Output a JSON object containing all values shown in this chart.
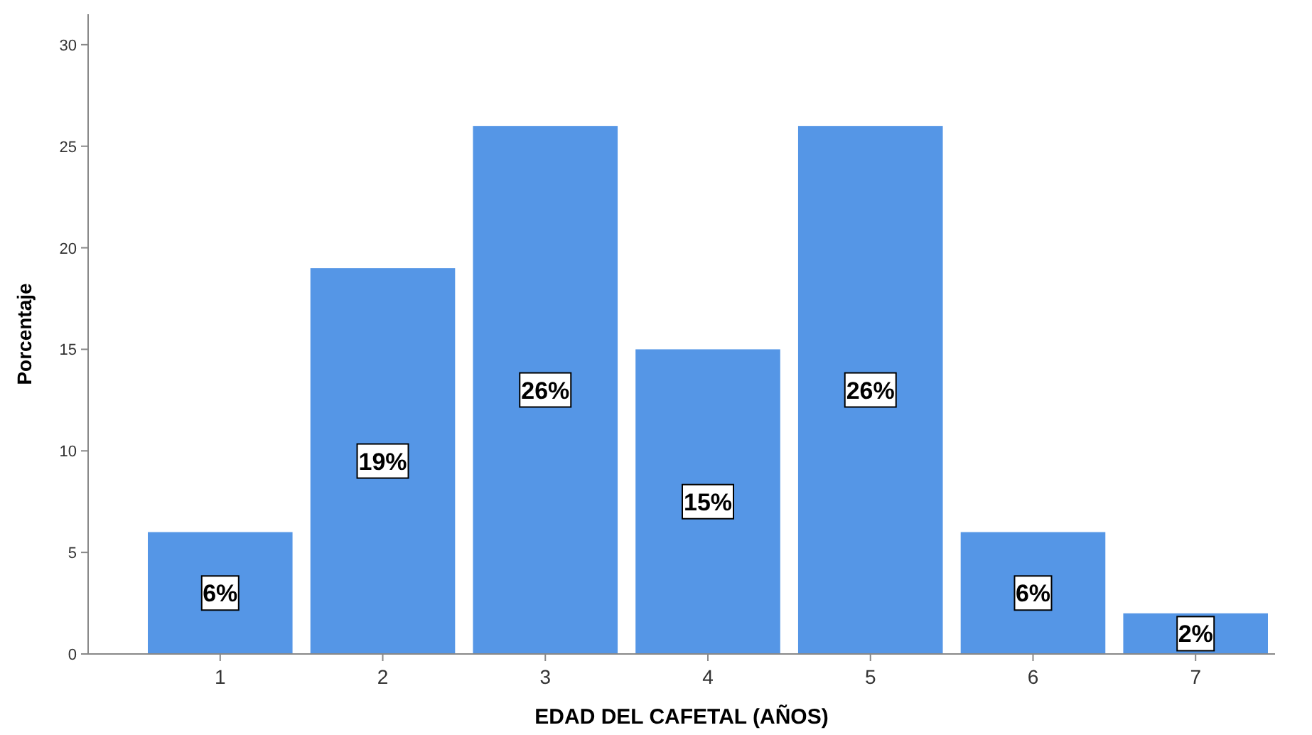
{
  "chart_data": {
    "type": "bar",
    "xlabel": "EDAD DEL CAFETAL (AÑOS)",
    "ylabel": "Porcentaje",
    "categories": [
      "1",
      "2",
      "3",
      "4",
      "5",
      "6",
      "7"
    ],
    "values": [
      6,
      19,
      26,
      15,
      26,
      6,
      2
    ],
    "value_labels": [
      "6%",
      "19%",
      "26%",
      "15%",
      "26%",
      "6%",
      "2%"
    ],
    "color": "#5596e6",
    "ylim": [
      0,
      31.5
    ],
    "yticks": [
      0,
      5,
      10,
      15,
      20,
      25,
      30
    ],
    "grid": false
  }
}
